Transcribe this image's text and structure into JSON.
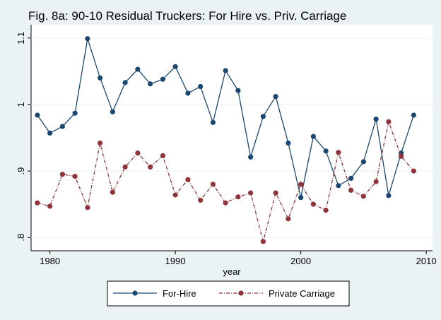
{
  "chart_data": {
    "type": "line",
    "title": "Fig. 8a: 90-10 Residual Truckers: For Hire vs. Priv. Carriage",
    "x_label": "year",
    "x": [
      1979,
      1980,
      1981,
      1982,
      1983,
      1984,
      1985,
      1986,
      1987,
      1988,
      1989,
      1990,
      1991,
      1992,
      1993,
      1994,
      1995,
      1996,
      1997,
      1998,
      1999,
      2000,
      2001,
      2002,
      2003,
      2004,
      2005,
      2006,
      2007,
      2008,
      2009
    ],
    "series": [
      {
        "name": "For-Hire",
        "color": "#1a476f",
        "dash": "solid",
        "values": [
          0.984,
          0.957,
          0.967,
          0.987,
          1.099,
          1.04,
          0.989,
          1.033,
          1.053,
          1.031,
          1.038,
          1.057,
          1.017,
          1.027,
          0.973,
          1.051,
          1.021,
          0.921,
          0.982,
          1.012,
          0.942,
          0.86,
          0.952,
          0.93,
          0.878,
          0.889,
          0.914,
          0.978,
          0.863,
          0.927,
          0.984
        ]
      },
      {
        "name": "Private Carriage",
        "color": "#90353b",
        "dash": "dashdot",
        "values": [
          0.852,
          0.847,
          0.895,
          0.892,
          0.845,
          0.942,
          0.868,
          0.906,
          0.927,
          0.906,
          0.923,
          0.864,
          0.887,
          0.856,
          0.88,
          0.852,
          0.861,
          0.867,
          0.794,
          0.867,
          0.828,
          0.88,
          0.85,
          0.841,
          0.928,
          0.871,
          0.862,
          0.884,
          0.974,
          0.922,
          0.9
        ]
      }
    ],
    "xlim": [
      1978.5,
      2010.5
    ],
    "xticks": [
      1980,
      1990,
      2000,
      2010
    ],
    "ylim": [
      0.78,
      1.12
    ],
    "yticks": [
      {
        "value": 0.8,
        "label": ".8"
      },
      {
        "value": 0.9,
        "label": ".9"
      },
      1,
      1.1
    ],
    "grid": true,
    "legend": "bottom"
  }
}
